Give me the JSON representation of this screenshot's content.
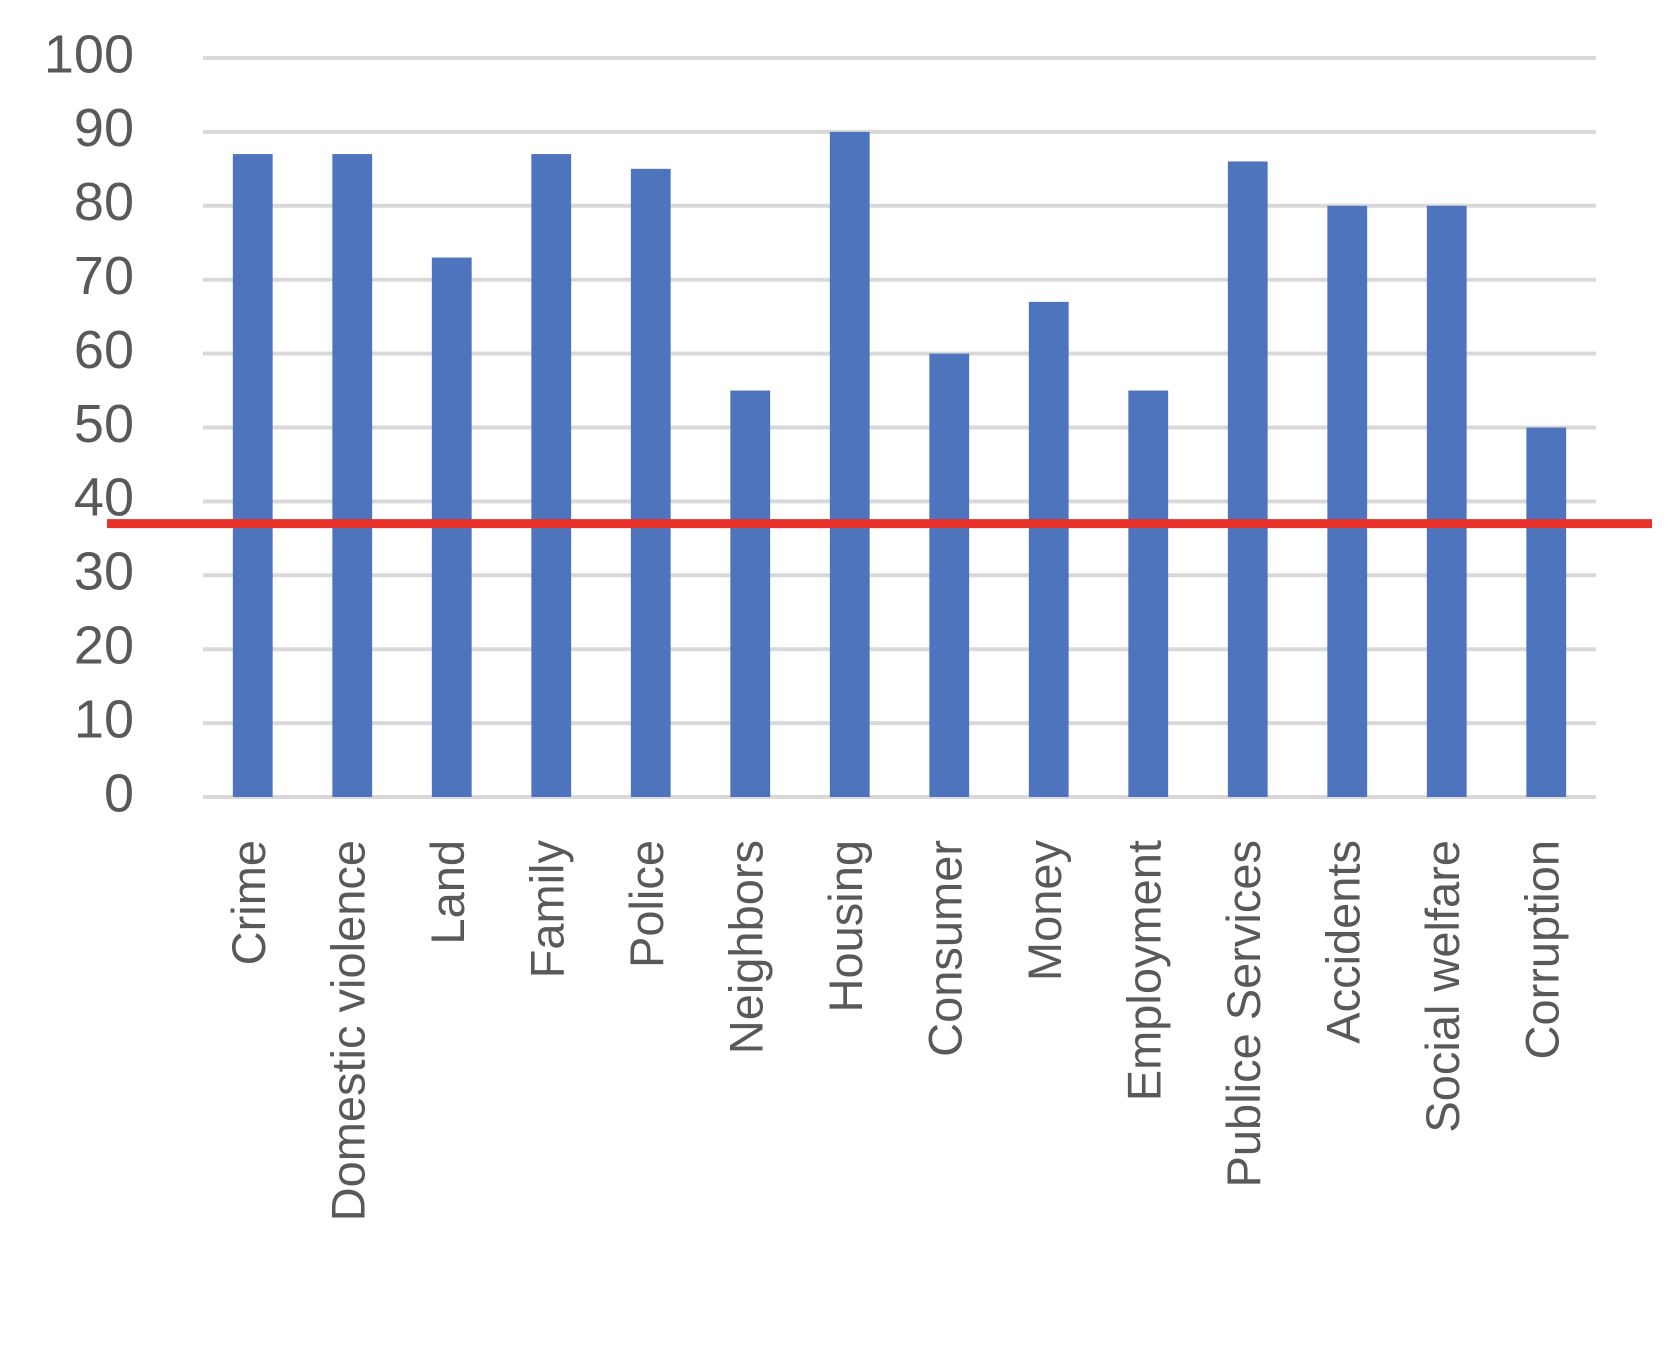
{
  "chart_data": {
    "type": "bar",
    "categories": [
      "Crime",
      "Domestic violence",
      "Land",
      "Family",
      "Police",
      "Neighbors",
      "Housing",
      "Consumer",
      "Money",
      "Employment",
      "Publice Services",
      "Accidents",
      "Social welfare",
      "Corruption"
    ],
    "values": [
      87,
      87,
      73,
      87,
      85,
      55,
      90,
      60,
      67,
      55,
      86,
      80,
      80,
      50
    ],
    "color": "#4e74bd",
    "ylim": [
      0,
      100
    ],
    "yticks": [
      0,
      10,
      20,
      30,
      40,
      50,
      60,
      70,
      80,
      90,
      100
    ],
    "grid": true,
    "reference_line": {
      "value": 37,
      "color": "#e8302a"
    }
  }
}
